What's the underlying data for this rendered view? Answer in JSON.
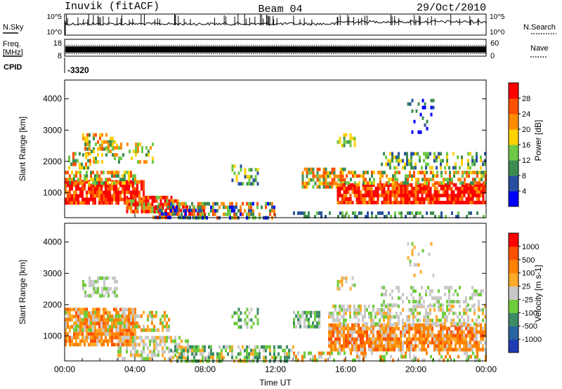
{
  "header": {
    "station": "Inuvik (fitACF)",
    "beam": "Beam 04",
    "date": "29/Oct/2010"
  },
  "noise_panel": {
    "left_label": "N.Sky",
    "right_label": "N.Search",
    "tick_top": "10^5",
    "tick_bottom": "10^0"
  },
  "freq_panel": {
    "left_label_1": "Freq.",
    "left_label_2": "[MHz]",
    "right_label": "Nave",
    "left_tick_top": "18",
    "left_tick_bottom": "8",
    "right_tick_top": "60",
    "right_tick_bottom": "0"
  },
  "cpid": {
    "label": "CPID",
    "value": "-3320"
  },
  "chart_data": [
    {
      "type": "heatmap",
      "name": "power",
      "ylabel": "Slant Range [km]",
      "yticks": [
        "1000",
        "2000",
        "3000",
        "4000"
      ],
      "ylim": [
        200,
        4600
      ],
      "xlim": [
        0,
        24
      ],
      "colorbar": {
        "label": "Power [dB]",
        "ticks": [
          "4",
          "8",
          "12",
          "16",
          "20",
          "24",
          "28"
        ],
        "colors": [
          "#0000ff",
          "#2850a0",
          "#3c8c50",
          "#6ec846",
          "#ffd200",
          "#ff8c00",
          "#ff5000",
          "#ff0000"
        ]
      }
    },
    {
      "type": "heatmap",
      "name": "velocity",
      "ylabel": "Slant Range [km]",
      "yticks": [
        "1000",
        "2000",
        "3000",
        "4000"
      ],
      "ylim": [
        200,
        4600
      ],
      "xlim": [
        0,
        24
      ],
      "colorbar": {
        "label": "Velocity [m s-1]",
        "ticks": [
          "1000",
          "500",
          "100",
          "25",
          "-25",
          "-100",
          "-500",
          "-1000"
        ],
        "colors": [
          "#1e3cb4",
          "#2864a0",
          "#3c8c64",
          "#6ecc3c",
          "#c8c8c8",
          "#ffaa28",
          "#ff8200",
          "#ff5000",
          "#ff0000"
        ]
      }
    }
  ],
  "xaxis": {
    "label": "Time UT",
    "ticks": [
      "00:00",
      "04:00",
      "08:00",
      "12:00",
      "16:00",
      "20:00",
      "00:00"
    ]
  }
}
